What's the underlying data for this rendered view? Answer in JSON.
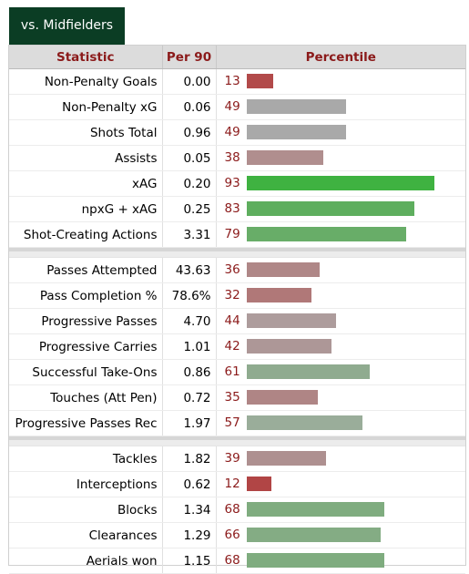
{
  "tab": {
    "label": "vs. Midfielders"
  },
  "columns": {
    "statistic": "Statistic",
    "per90": "Per 90",
    "percentile": "Percentile"
  },
  "groups": [
    {
      "rows": [
        {
          "stat": "Non-Penalty Goals",
          "per90": "0.00",
          "percentile": "13",
          "color": "#b24a4a"
        },
        {
          "stat": "Non-Penalty xG",
          "per90": "0.06",
          "percentile": "49",
          "color": "#a9a9a9"
        },
        {
          "stat": "Shots Total",
          "per90": "0.96",
          "percentile": "49",
          "color": "#a9a9a9"
        },
        {
          "stat": "Assists",
          "per90": "0.05",
          "percentile": "38",
          "color": "#b08e8e"
        },
        {
          "stat": "xAG",
          "per90": "0.20",
          "percentile": "93",
          "color": "#3fb241"
        },
        {
          "stat": "npxG + xAG",
          "per90": "0.25",
          "percentile": "83",
          "color": "#5eae5e"
        },
        {
          "stat": "Shot-Creating Actions",
          "per90": "3.31",
          "percentile": "79",
          "color": "#68ad68"
        }
      ]
    },
    {
      "rows": [
        {
          "stat": "Passes Attempted",
          "per90": "43.63",
          "percentile": "36",
          "color": "#af8787"
        },
        {
          "stat": "Pass Completion %",
          "per90": "78.6%",
          "percentile": "32",
          "color": "#b07878"
        },
        {
          "stat": "Progressive Passes",
          "per90": "4.70",
          "percentile": "44",
          "color": "#ad9c9c"
        },
        {
          "stat": "Progressive Carries",
          "per90": "1.01",
          "percentile": "42",
          "color": "#ad9797"
        },
        {
          "stat": "Successful Take-Ons",
          "per90": "0.86",
          "percentile": "61",
          "color": "#8fab8f"
        },
        {
          "stat": "Touches (Att Pen)",
          "per90": "0.72",
          "percentile": "35",
          "color": "#af8585"
        },
        {
          "stat": "Progressive Passes Rec",
          "per90": "1.97",
          "percentile": "57",
          "color": "#9aad9a"
        }
      ]
    },
    {
      "rows": [
        {
          "stat": "Tackles",
          "per90": "1.82",
          "percentile": "39",
          "color": "#ae9090"
        },
        {
          "stat": "Interceptions",
          "per90": "0.62",
          "percentile": "12",
          "color": "#b14545"
        },
        {
          "stat": "Blocks",
          "per90": "1.34",
          "percentile": "68",
          "color": "#7fac7f"
        },
        {
          "stat": "Clearances",
          "per90": "1.29",
          "percentile": "66",
          "color": "#84ac84"
        },
        {
          "stat": "Aerials won",
          "per90": "1.15",
          "percentile": "68",
          "color": "#7fac7f"
        }
      ]
    }
  ]
}
